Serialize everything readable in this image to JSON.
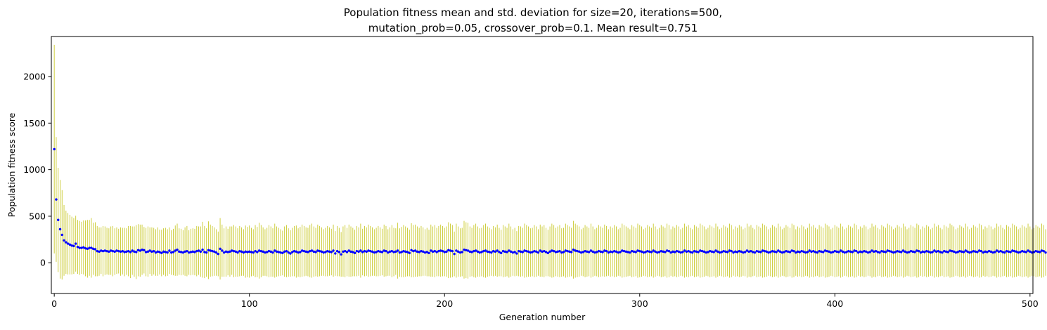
{
  "chart_data": {
    "type": "scatter",
    "title_lines": [
      "Population fitness mean and std. deviation for size=20, iterations=500,",
      "mutation_prob=0.05, crossover_prob=0.1. Mean result=0.751"
    ],
    "xlabel": "Generation number",
    "ylabel": "Population fitness score",
    "xlim": [
      -1.5,
      501.5
    ],
    "ylim": [
      -330,
      2430
    ],
    "xticks": [
      0,
      100,
      200,
      300,
      400,
      500
    ],
    "yticks": [
      0,
      500,
      1000,
      1500,
      2000
    ],
    "grid": false,
    "legend": "none",
    "series": [
      {
        "marker_color": "#0000ff",
        "errorbar_color": "#c9c92a",
        "x_start": 0,
        "x_step": 1,
        "mean": [
          1220,
          680,
          460,
          360,
          300,
          240,
          220,
          205,
          195,
          185,
          180,
          205,
          170,
          160,
          160,
          165,
          155,
          150,
          160,
          160,
          150,
          145,
          125,
          120,
          130,
          125,
          130,
          125,
          120,
          130,
          125,
          120,
          130,
          125,
          120,
          125,
          115,
          120,
          125,
          115,
          130,
          120,
          115,
          135,
          130,
          140,
          135,
          115,
          120,
          130,
          120,
          125,
          110,
          120,
          115,
          105,
          120,
          115,
          110,
          130,
          110,
          115,
          130,
          140,
          120,
          115,
          110,
          120,
          125,
          110,
          115,
          120,
          115,
          125,
          130,
          120,
          140,
          115,
          110,
          135,
          130,
          125,
          120,
          110,
          95,
          150,
          130,
          110,
          120,
          115,
          120,
          130,
          125,
          120,
          110,
          125,
          120,
          110,
          120,
          115,
          120,
          115,
          110,
          125,
          115,
          130,
          125,
          120,
          110,
          115,
          125,
          120,
          110,
          130,
          120,
          115,
          110,
          105,
          120,
          125,
          110,
          100,
          115,
          125,
          120,
          110,
          115,
          130,
          125,
          120,
          115,
          125,
          130,
          120,
          115,
          130,
          125,
          120,
          110,
          115,
          125,
          120,
          115,
          130,
          100,
          125,
          115,
          90,
          120,
          125,
          115,
          130,
          120,
          115,
          105,
          125,
          120,
          130,
          115,
          125,
          120,
          130,
          125,
          120,
          110,
          115,
          125,
          120,
          115,
          130,
          125,
          110,
          120,
          125,
          115,
          120,
          130,
          110,
          115,
          125,
          120,
          115,
          105,
          135,
          125,
          130,
          120,
          115,
          125,
          120,
          110,
          115,
          105,
          130,
          120,
          125,
          115,
          125,
          130,
          125,
          115,
          120,
          135,
          130,
          125,
          95,
          130,
          120,
          110,
          115,
          140,
          135,
          130,
          120,
          115,
          125,
          130,
          120,
          110,
          115,
          125,
          130,
          120,
          115,
          110,
          125,
          120,
          130,
          115,
          105,
          125,
          120,
          115,
          130,
          120,
          110,
          115,
          100,
          125,
          120,
          115,
          130,
          125,
          120,
          110,
          115,
          125,
          120,
          110,
          130,
          120,
          125,
          115,
          105,
          120,
          130,
          125,
          115,
          120,
          125,
          110,
          115,
          130,
          125,
          120,
          115,
          140,
          130,
          125,
          120,
          110,
          115,
          125,
          120,
          115,
          130,
          120,
          110,
          115,
          125,
          120,
          115,
          130,
          125,
          110,
          120,
          115,
          125,
          120,
          110,
          115,
          130,
          125,
          120,
          115,
          110,
          125,
          120,
          115,
          130,
          125,
          120,
          110,
          115,
          125,
          120,
          115,
          130,
          120,
          110,
          115,
          125,
          120,
          115,
          130,
          125,
          110,
          120,
          115,
          125,
          120,
          110,
          115,
          130,
          120,
          125,
          115,
          110,
          125,
          120,
          115,
          130,
          125,
          120,
          110,
          115,
          125,
          120,
          115,
          130,
          120,
          110,
          115,
          125,
          120,
          115,
          130,
          125,
          110,
          120,
          115,
          125,
          120,
          110,
          115,
          130,
          120,
          125,
          115,
          110,
          125,
          120,
          115,
          130,
          125,
          120,
          110,
          115,
          125,
          120,
          115,
          130,
          120,
          110,
          115,
          125,
          120,
          115,
          130,
          125,
          110,
          120,
          115,
          125,
          120,
          110,
          115,
          130,
          120,
          125,
          115,
          110,
          125,
          120,
          115,
          130,
          125,
          120,
          110,
          115,
          125,
          120,
          115,
          130,
          120,
          110,
          115,
          125,
          120,
          115,
          130,
          125,
          110,
          120,
          115,
          125,
          120,
          110,
          115,
          130,
          120,
          125,
          115,
          110,
          125,
          120,
          115,
          130,
          125,
          120,
          110,
          115,
          125,
          120,
          115,
          130,
          120,
          110,
          115,
          125,
          120,
          115,
          130,
          125,
          110,
          120,
          115,
          125,
          120,
          110,
          115,
          130,
          120,
          125,
          115,
          110,
          125,
          120,
          115,
          130,
          125,
          120,
          110,
          115,
          125,
          120,
          115,
          130,
          120,
          110,
          115,
          125,
          120,
          115,
          130,
          125,
          110,
          120,
          115,
          125,
          120,
          110,
          115,
          130,
          120,
          125,
          115,
          110,
          125,
          120,
          115,
          130,
          125,
          120,
          110,
          115,
          125,
          120,
          115,
          130,
          120,
          110,
          115,
          125,
          120,
          115,
          130,
          125,
          110
        ],
        "std": [
          1120,
          670,
          560,
          530,
          480,
          380,
          340,
          330,
          320,
          310,
          300,
          300,
          290,
          290,
          280,
          290,
          300,
          310,
          300,
          320,
          280,
          290,
          270,
          260,
          250,
          270,
          260,
          250,
          250,
          260,
          270,
          250,
          250,
          240,
          260,
          250,
          260,
          250,
          270,
          280,
          260,
          270,
          290,
          280,
          280,
          270,
          250,
          260,
          270,
          250,
          260,
          250,
          250,
          260,
          240,
          250,
          250,
          260,
          250,
          250,
          240,
          250,
          270,
          280,
          250,
          250,
          240,
          260,
          270,
          240,
          250,
          250,
          250,
          270,
          260,
          270,
          300,
          280,
          260,
          310,
          280,
          270,
          260,
          250,
          240,
          330,
          280,
          260,
          270,
          250,
          270,
          260,
          280,
          270,
          260,
          270,
          260,
          250,
          280,
          270,
          280,
          260,
          250,
          280,
          270,
          300,
          280,
          260,
          250,
          260,
          280,
          270,
          260,
          290,
          270,
          260,
          250,
          240,
          270,
          280,
          260,
          250,
          260,
          270,
          280,
          260,
          270,
          280,
          270,
          260,
          260,
          280,
          290,
          270,
          260,
          280,
          270,
          260,
          250,
          260,
          270,
          260,
          250,
          280,
          240,
          270,
          260,
          240,
          270,
          280,
          260,
          280,
          270,
          260,
          250,
          270,
          260,
          290,
          250,
          270,
          260,
          280,
          270,
          260,
          250,
          260,
          270,
          260,
          250,
          280,
          270,
          250,
          260,
          280,
          260,
          250,
          300,
          260,
          270,
          280,
          270,
          260,
          250,
          290,
          280,
          280,
          270,
          260,
          270,
          260,
          250,
          260,
          250,
          280,
          270,
          280,
          260,
          270,
          280,
          270,
          260,
          270,
          300,
          290,
          280,
          240,
          290,
          270,
          260,
          260,
          310,
          300,
          300,
          270,
          260,
          280,
          290,
          270,
          260,
          260,
          280,
          290,
          270,
          260,
          250,
          270,
          260,
          280,
          260,
          250,
          280,
          270,
          260,
          290,
          270,
          250,
          260,
          240,
          270,
          270,
          260,
          290,
          280,
          270,
          260,
          260,
          280,
          270,
          250,
          280,
          270,
          280,
          260,
          250,
          270,
          290,
          280,
          260,
          270,
          280,
          260,
          260,
          290,
          280,
          270,
          260,
          310,
          290,
          280,
          270,
          250,
          260,
          280,
          270,
          260,
          290,
          270,
          250,
          260,
          280,
          270,
          260,
          280,
          270,
          250,
          270,
          260,
          280,
          270,
          250,
          260,
          290,
          280,
          270,
          260,
          250,
          280,
          270,
          260,
          290,
          280,
          270,
          250,
          260,
          280,
          270,
          260,
          290,
          270,
          250,
          260,
          280,
          270,
          260,
          290,
          280,
          250,
          270,
          260,
          280,
          270,
          250,
          260,
          290,
          270,
          280,
          260,
          250,
          280,
          270,
          260,
          290,
          280,
          270,
          250,
          260,
          280,
          270,
          260,
          290,
          270,
          250,
          260,
          280,
          270,
          260,
          290,
          280,
          250,
          270,
          260,
          280,
          270,
          250,
          260,
          290,
          270,
          280,
          260,
          250,
          280,
          270,
          260,
          290,
          280,
          270,
          250,
          260,
          280,
          270,
          260,
          290,
          270,
          250,
          260,
          280,
          270,
          260,
          290,
          280,
          250,
          270,
          260,
          280,
          270,
          250,
          260,
          290,
          270,
          280,
          260,
          250,
          280,
          270,
          260,
          290,
          280,
          270,
          250,
          260,
          280,
          270,
          260,
          290,
          270,
          250,
          260,
          280,
          270,
          260,
          290,
          280,
          250,
          270,
          260,
          280,
          270,
          250,
          260,
          290,
          270,
          280,
          260,
          250,
          280,
          270,
          260,
          290,
          280,
          270,
          250,
          260,
          280,
          270,
          260,
          290,
          270,
          250,
          260,
          280,
          270,
          260,
          290,
          280,
          250,
          270,
          260,
          280,
          270,
          250,
          260,
          290,
          270,
          280,
          260,
          250,
          280,
          270,
          260,
          290,
          280,
          270,
          250,
          260,
          280,
          270,
          260,
          290,
          270,
          250,
          260,
          280,
          270,
          260,
          290,
          280,
          250,
          270,
          260,
          280,
          270,
          250,
          260,
          290,
          270,
          280,
          260,
          250,
          280,
          270,
          260,
          290,
          280,
          270,
          250,
          260,
          280,
          270,
          260,
          290,
          270,
          250,
          260,
          280,
          270,
          260,
          290,
          280,
          250
        ]
      }
    ]
  }
}
